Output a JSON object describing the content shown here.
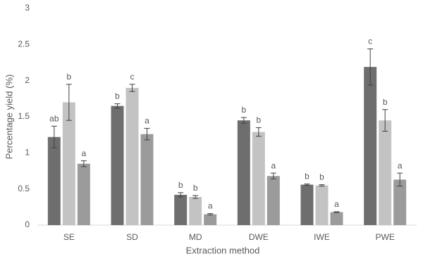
{
  "chart_data": {
    "type": "bar",
    "x_label": "Extraction method",
    "y_label": "Percentage yield (%)",
    "categories": [
      "SE",
      "SD",
      "MD",
      "DWE",
      "IWE",
      "PWE"
    ],
    "series": [
      {
        "color": "#6e6e6e",
        "values": [
          1.22,
          1.65,
          0.42,
          1.45,
          0.56,
          2.19
        ],
        "errors": [
          0.15,
          0.03,
          0.03,
          0.04,
          0.01,
          0.25
        ],
        "letters": [
          "ab",
          "b",
          "b",
          "b",
          "b",
          "c"
        ]
      },
      {
        "color": "#c3c3c3",
        "values": [
          1.7,
          1.9,
          0.39,
          1.29,
          0.55,
          1.45
        ],
        "errors": [
          0.25,
          0.05,
          0.02,
          0.06,
          0.01,
          0.15
        ],
        "letters": [
          "b",
          "c",
          "b",
          "b",
          "b",
          "b"
        ]
      },
      {
        "color": "#9b9b9b",
        "values": [
          0.85,
          1.26,
          0.15,
          0.68,
          0.18,
          0.63
        ],
        "errors": [
          0.04,
          0.08,
          0.01,
          0.04,
          0.005,
          0.09
        ],
        "letters": [
          "a",
          "a",
          "a",
          "a",
          "a",
          "a"
        ]
      }
    ],
    "ylim": [
      0,
      3
    ],
    "yticks": [
      0,
      0.5,
      1,
      1.5,
      2,
      2.5,
      3
    ],
    "grid": false
  }
}
